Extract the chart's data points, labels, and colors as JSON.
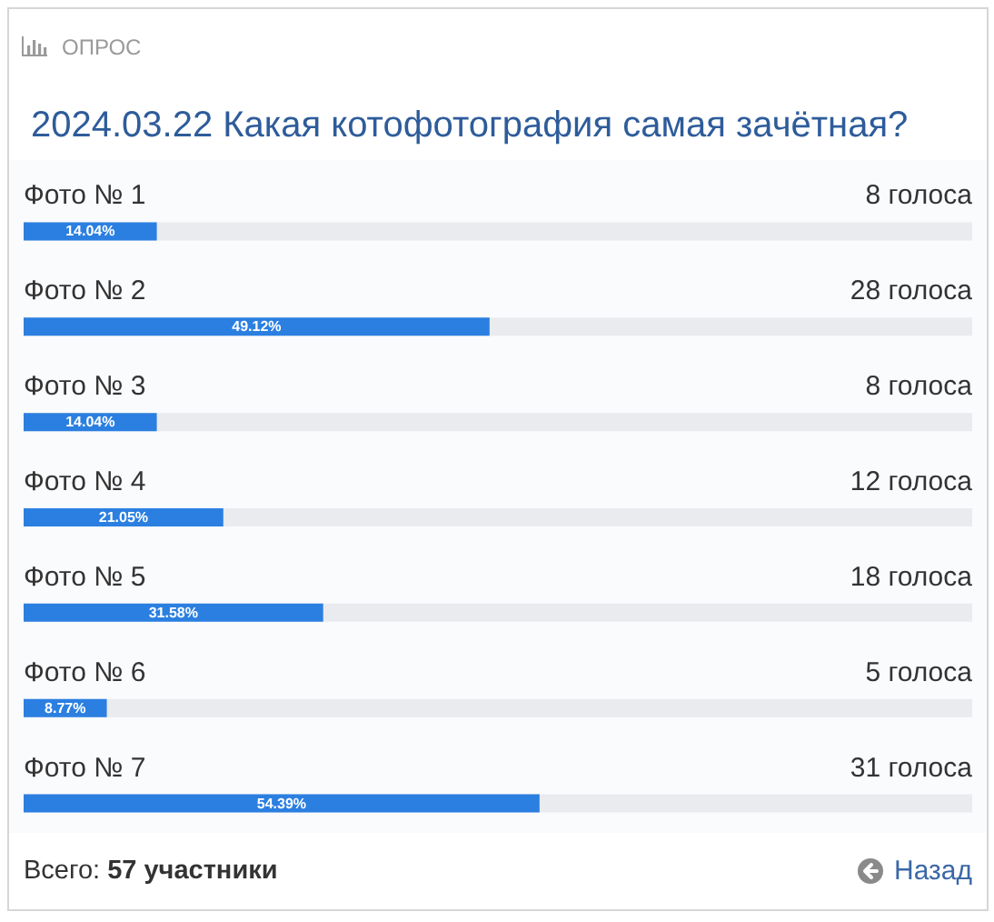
{
  "chart_data": {
    "type": "bar",
    "orientation": "horizontal",
    "title": "2024.03.22 Какая котофотография самая зачётная?",
    "categories": [
      "Фото № 1",
      "Фото № 2",
      "Фото № 3",
      "Фото № 4",
      "Фото № 5",
      "Фото № 6",
      "Фото № 7"
    ],
    "values": [
      14.04,
      49.12,
      14.04,
      21.05,
      31.58,
      8.77,
      54.39
    ],
    "value_labels": [
      "14.04%",
      "49.12%",
      "14.04%",
      "21.05%",
      "31.58%",
      "8.77%",
      "54.39%"
    ],
    "color": "#2b7fe1",
    "xlim": [
      0,
      100
    ],
    "tick_labels": "y",
    "grid": false,
    "annotations": [
      "ОПРОС",
      "8 голоса",
      "28 голоса",
      "8 голоса",
      "12 голоса",
      "18 голоса",
      "5 голоса",
      "31 голоса",
      "Всего: 57 участники",
      "Назад"
    ]
  }
}
